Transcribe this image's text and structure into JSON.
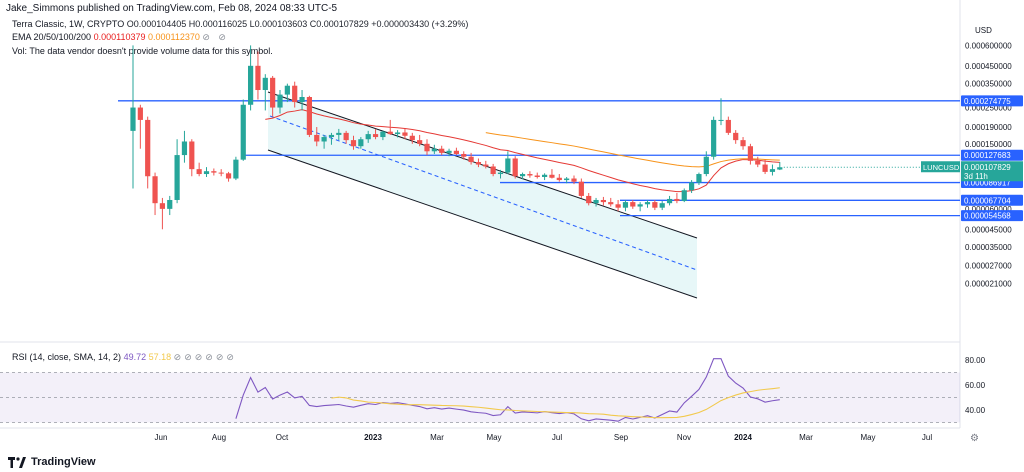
{
  "header": {
    "publisher": "Jake_Simmons published on TradingView.com, Feb 08, 2024 08:33 UTC-5"
  },
  "legend": {
    "symbol": "Terra Classic, 1W, CRYPTO",
    "ohlc": "O0.000104405 H0.000116025 L0.000103603 C0.000107829 +0.000003430 (+3.29%)",
    "ema_label": "EMA 20/50/100/200",
    "ema_value1": "0.000110379",
    "ema_value2": "0.000112370",
    "vol_note": "Vol: The data vendor doesn't provide volume data for this symbol."
  },
  "rsi_legend": {
    "label": "RSI (14, close, SMA, 14, 2)",
    "value1": "49.72",
    "value2": "57.18"
  },
  "currency": "USD",
  "footer": {
    "brand": "TradingView"
  },
  "colors": {
    "up": "#26a69a",
    "down": "#ef5350",
    "line": "#2962ff",
    "ema_fast": "#e53935",
    "ema_slow": "#f7931a",
    "rsi": "#7e57c2",
    "rsi_ma": "#f2c94c"
  },
  "chart_data": {
    "type": "candlestick",
    "scale": "log",
    "price_axis": [
      "0.000600000",
      "0.000450000",
      "0.000350000",
      "0.000250000",
      "0.000190000",
      "0.000150000",
      "0.000100000",
      "0.000060000",
      "0.000045000",
      "0.000035000",
      "0.000027000",
      "0.000021000"
    ],
    "time_axis": [
      "Jun",
      "Aug",
      "Oct",
      "2023",
      "Mar",
      "May",
      "Jul",
      "Sep",
      "Nov",
      "2024",
      "Mar",
      "May",
      "Jul"
    ],
    "horizontal_levels": [
      "0.000274775",
      "0.000127683",
      "0.000086917",
      "0.000067704",
      "0.000054568"
    ],
    "last_price": {
      "symbol": "LUNCUSD",
      "value": "0.000107829",
      "countdown": "3d 11h"
    },
    "candles": [
      {
        "o": 0.00018,
        "h": 0.0006,
        "l": 8e-05,
        "c": 0.00025
      },
      {
        "o": 0.00025,
        "h": 0.00026,
        "l": 0.00014,
        "c": 0.00021
      },
      {
        "o": 0.00021,
        "h": 0.00022,
        "l": 8e-05,
        "c": 9.5e-05
      },
      {
        "o": 9.5e-05,
        "h": 0.0001,
        "l": 5.5e-05,
        "c": 6.5e-05
      },
      {
        "o": 6.5e-05,
        "h": 7e-05,
        "l": 4.5e-05,
        "c": 6e-05
      },
      {
        "o": 6e-05,
        "h": 7.2e-05,
        "l": 5.5e-05,
        "c": 6.8e-05
      },
      {
        "o": 6.8e-05,
        "h": 0.00016,
        "l": 6.5e-05,
        "c": 0.000128
      },
      {
        "o": 0.000128,
        "h": 0.00018,
        "l": 0.000115,
        "c": 0.000155
      },
      {
        "o": 0.000155,
        "h": 0.00016,
        "l": 9.5e-05,
        "c": 0.000105
      },
      {
        "o": 0.000105,
        "h": 0.000115,
        "l": 9.5e-05,
        "c": 9.8e-05
      },
      {
        "o": 9.8e-05,
        "h": 0.000108,
        "l": 9.4e-05,
        "c": 0.000102
      },
      {
        "o": 0.000102,
        "h": 0.000106,
        "l": 9.6e-05,
        "c": 0.0001
      },
      {
        "o": 0.0001,
        "h": 0.000105,
        "l": 9.5e-05,
        "c": 9.9e-05
      },
      {
        "o": 9.9e-05,
        "h": 0.000101,
        "l": 8.8e-05,
        "c": 9.2e-05
      },
      {
        "o": 9.2e-05,
        "h": 0.000125,
        "l": 9e-05,
        "c": 0.00012
      },
      {
        "o": 0.00012,
        "h": 0.00028,
        "l": 0.000118,
        "c": 0.00026
      },
      {
        "o": 0.00026,
        "h": 0.0006,
        "l": 0.00024,
        "c": 0.00045
      },
      {
        "o": 0.00045,
        "h": 0.00055,
        "l": 0.00028,
        "c": 0.00032
      },
      {
        "o": 0.00032,
        "h": 0.0004,
        "l": 0.00024,
        "c": 0.00038
      },
      {
        "o": 0.00038,
        "h": 0.00039,
        "l": 0.00022,
        "c": 0.00025
      },
      {
        "o": 0.00025,
        "h": 0.00032,
        "l": 0.00023,
        "c": 0.0003
      },
      {
        "o": 0.0003,
        "h": 0.00035,
        "l": 0.00027,
        "c": 0.00034
      },
      {
        "o": 0.00034,
        "h": 0.00036,
        "l": 0.00025,
        "c": 0.00027
      },
      {
        "o": 0.00027,
        "h": 0.00032,
        "l": 0.00024,
        "c": 0.00029
      },
      {
        "o": 0.00029,
        "h": 0.000295,
        "l": 0.000165,
        "c": 0.00017
      },
      {
        "o": 0.00017,
        "h": 0.00019,
        "l": 0.000145,
        "c": 0.000155
      },
      {
        "o": 0.000155,
        "h": 0.00017,
        "l": 0.00014,
        "c": 0.000165
      },
      {
        "o": 0.000165,
        "h": 0.000175,
        "l": 0.000148,
        "c": 0.00017
      },
      {
        "o": 0.00017,
        "h": 0.000185,
        "l": 0.000158,
        "c": 0.000175
      },
      {
        "o": 0.000175,
        "h": 0.00018,
        "l": 0.00015,
        "c": 0.000158
      },
      {
        "o": 0.000158,
        "h": 0.000168,
        "l": 0.000138,
        "c": 0.000145
      },
      {
        "o": 0.000145,
        "h": 0.000165,
        "l": 0.00014,
        "c": 0.00016
      },
      {
        "o": 0.00016,
        "h": 0.00018,
        "l": 0.000152,
        "c": 0.000172
      },
      {
        "o": 0.000172,
        "h": 0.000185,
        "l": 0.00016,
        "c": 0.000165
      },
      {
        "o": 0.000165,
        "h": 0.00018,
        "l": 0.000158,
        "c": 0.000178
      },
      {
        "o": 0.000178,
        "h": 0.00021,
        "l": 0.00017,
        "c": 0.000172
      },
      {
        "o": 0.000172,
        "h": 0.000182,
        "l": 0.000164,
        "c": 0.000176
      },
      {
        "o": 0.000176,
        "h": 0.000185,
        "l": 0.00016,
        "c": 0.000168
      },
      {
        "o": 0.000168,
        "h": 0.000175,
        "l": 0.00015,
        "c": 0.000158
      },
      {
        "o": 0.000158,
        "h": 0.00017,
        "l": 0.000145,
        "c": 0.00015
      },
      {
        "o": 0.00015,
        "h": 0.00016,
        "l": 0.000128,
        "c": 0.000135
      },
      {
        "o": 0.000135,
        "h": 0.000148,
        "l": 0.00013,
        "c": 0.00014
      },
      {
        "o": 0.00014,
        "h": 0.000146,
        "l": 0.000128,
        "c": 0.000132
      },
      {
        "o": 0.000132,
        "h": 0.00014,
        "l": 0.000126,
        "c": 0.000136
      },
      {
        "o": 0.000136,
        "h": 0.000142,
        "l": 0.000128,
        "c": 0.00013
      },
      {
        "o": 0.00013,
        "h": 0.000135,
        "l": 0.00012,
        "c": 0.000125
      },
      {
        "o": 0.000125,
        "h": 0.000132,
        "l": 0.000112,
        "c": 0.000116
      },
      {
        "o": 0.000116,
        "h": 0.000122,
        "l": 0.000108,
        "c": 0.000112
      },
      {
        "o": 0.000112,
        "h": 0.000118,
        "l": 0.000106,
        "c": 0.000109
      },
      {
        "o": 0.000109,
        "h": 0.000113,
        "l": 9.5e-05,
        "c": 9.8e-05
      },
      {
        "o": 9.8e-05,
        "h": 0.000104,
        "l": 9.2e-05,
        "c": 0.0001
      },
      {
        "o": 0.0001,
        "h": 0.000135,
        "l": 9.8e-05,
        "c": 0.000122
      },
      {
        "o": 0.000122,
        "h": 0.000126,
        "l": 9.2e-05,
        "c": 9.5e-05
      },
      {
        "o": 9.5e-05,
        "h": 0.0001,
        "l": 9.1e-05,
        "c": 9.8e-05
      },
      {
        "o": 9.8e-05,
        "h": 0.000102,
        "l": 9.3e-05,
        "c": 9.6e-05
      },
      {
        "o": 9.6e-05,
        "h": 0.0001,
        "l": 9.2e-05,
        "c": 9.4e-05
      },
      {
        "o": 9.4e-05,
        "h": 9.9e-05,
        "l": 9e-05,
        "c": 9.7e-05
      },
      {
        "o": 9.7e-05,
        "h": 0.000105,
        "l": 9.2e-05,
        "c": 9.3e-05
      },
      {
        "o": 9.3e-05,
        "h": 9.8e-05,
        "l": 8.8e-05,
        "c": 9e-05
      },
      {
        "o": 9e-05,
        "h": 9.4e-05,
        "l": 8.6e-05,
        "c": 9.2e-05
      },
      {
        "o": 9.2e-05,
        "h": 9.6e-05,
        "l": 8.5e-05,
        "c": 8.8e-05
      },
      {
        "o": 8.8e-05,
        "h": 9.2e-05,
        "l": 7e-05,
        "c": 7.2e-05
      },
      {
        "o": 7.2e-05,
        "h": 7.5e-05,
        "l": 6.3e-05,
        "c": 6.5e-05
      },
      {
        "o": 6.5e-05,
        "h": 7e-05,
        "l": 6.2e-05,
        "c": 6.8e-05
      },
      {
        "o": 6.8e-05,
        "h": 7.1e-05,
        "l": 6.3e-05,
        "c": 6.6e-05
      },
      {
        "o": 6.6e-05,
        "h": 7e-05,
        "l": 6.2e-05,
        "c": 6.4e-05
      },
      {
        "o": 6.4e-05,
        "h": 6.8e-05,
        "l": 5.8e-05,
        "c": 6.1e-05
      },
      {
        "o": 6.1e-05,
        "h": 6.8e-05,
        "l": 5.8e-05,
        "c": 6.6e-05
      },
      {
        "o": 6.6e-05,
        "h": 6.8e-05,
        "l": 6e-05,
        "c": 6.2e-05
      },
      {
        "o": 6.2e-05,
        "h": 6.6e-05,
        "l": 5.8e-05,
        "c": 6.4e-05
      },
      {
        "o": 6.4e-05,
        "h": 6.8e-05,
        "l": 6.1e-05,
        "c": 6.6e-05
      },
      {
        "o": 6.6e-05,
        "h": 6.8e-05,
        "l": 5.9e-05,
        "c": 6.1e-05
      },
      {
        "o": 6.1e-05,
        "h": 6.7e-05,
        "l": 5.9e-05,
        "c": 6.5e-05
      },
      {
        "o": 6.5e-05,
        "h": 7.2e-05,
        "l": 6.3e-05,
        "c": 6.9e-05
      },
      {
        "o": 6.9e-05,
        "h": 7.5e-05,
        "l": 6.5e-05,
        "c": 6.7e-05
      },
      {
        "o": 6.7e-05,
        "h": 8e-05,
        "l": 6.6e-05,
        "c": 7.8e-05
      },
      {
        "o": 7.8e-05,
        "h": 9e-05,
        "l": 7.5e-05,
        "c": 8.7e-05
      },
      {
        "o": 8.7e-05,
        "h": 0.0001,
        "l": 8.4e-05,
        "c": 9.8e-05
      },
      {
        "o": 9.8e-05,
        "h": 0.000135,
        "l": 9.5e-05,
        "c": 0.000125
      },
      {
        "o": 0.000125,
        "h": 0.00022,
        "l": 0.00012,
        "c": 0.00021
      },
      {
        "o": 0.00021,
        "h": 0.000285,
        "l": 0.000195,
        "c": 0.00021
      },
      {
        "o": 0.00021,
        "h": 0.00022,
        "l": 0.00017,
        "c": 0.000175
      },
      {
        "o": 0.000175,
        "h": 0.000182,
        "l": 0.00015,
        "c": 0.000158
      },
      {
        "o": 0.000158,
        "h": 0.000165,
        "l": 0.000138,
        "c": 0.000145
      },
      {
        "o": 0.000145,
        "h": 0.00015,
        "l": 0.000112,
        "c": 0.000118
      },
      {
        "o": 0.000118,
        "h": 0.000125,
        "l": 0.000108,
        "c": 0.000112
      },
      {
        "o": 0.000112,
        "h": 0.00012,
        "l": 9.8e-05,
        "c": 0.000101
      },
      {
        "o": 0.000101,
        "h": 0.000112,
        "l": 9.6e-05,
        "c": 0.000105
      },
      {
        "o": 0.000104405,
        "h": 0.000116025,
        "l": 0.000103603,
        "c": 0.000107829
      }
    ],
    "rsi_axis": [
      "80.00",
      "60.00",
      "40.00"
    ],
    "rsi": [],
    "rsi_levels": [
      70,
      50,
      30
    ]
  }
}
